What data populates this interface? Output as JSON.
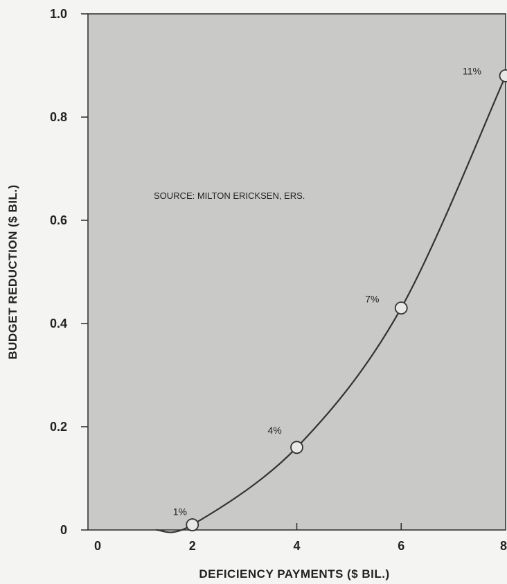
{
  "chart_data": {
    "type": "line",
    "xlabel": "DEFICIENCY PAYMENTS ($ BIL.)",
    "ylabel": "BUDGET REDUCTION ($ BIL.)",
    "xlim": [
      0,
      8
    ],
    "ylim": [
      0,
      1.0
    ],
    "x_ticks": [
      0,
      2,
      4,
      6,
      8
    ],
    "x_tick_labels": [
      "0",
      "2",
      "4",
      "6",
      "8"
    ],
    "y_ticks": [
      0,
      0.2,
      0.4,
      0.6,
      0.8,
      1.0
    ],
    "y_tick_labels": [
      "0",
      "0.2",
      "0.4",
      "0.6",
      "0.8",
      "1.0"
    ],
    "grid": false,
    "points": [
      {
        "x": 2,
        "y": 0.01,
        "label": "1%"
      },
      {
        "x": 4,
        "y": 0.16,
        "label": "4%"
      },
      {
        "x": 6,
        "y": 0.43,
        "label": "7%"
      },
      {
        "x": 8,
        "y": 0.88,
        "label": "11%"
      }
    ],
    "curve_start": {
      "x": 1.3,
      "y": 0
    },
    "annotation": "SOURCE: MILTON ERICKSEN, ERS.",
    "colors": {
      "plot_bg": "#c9c9c7",
      "line": "#333333",
      "marker_fill": "#e8e8e6"
    }
  }
}
